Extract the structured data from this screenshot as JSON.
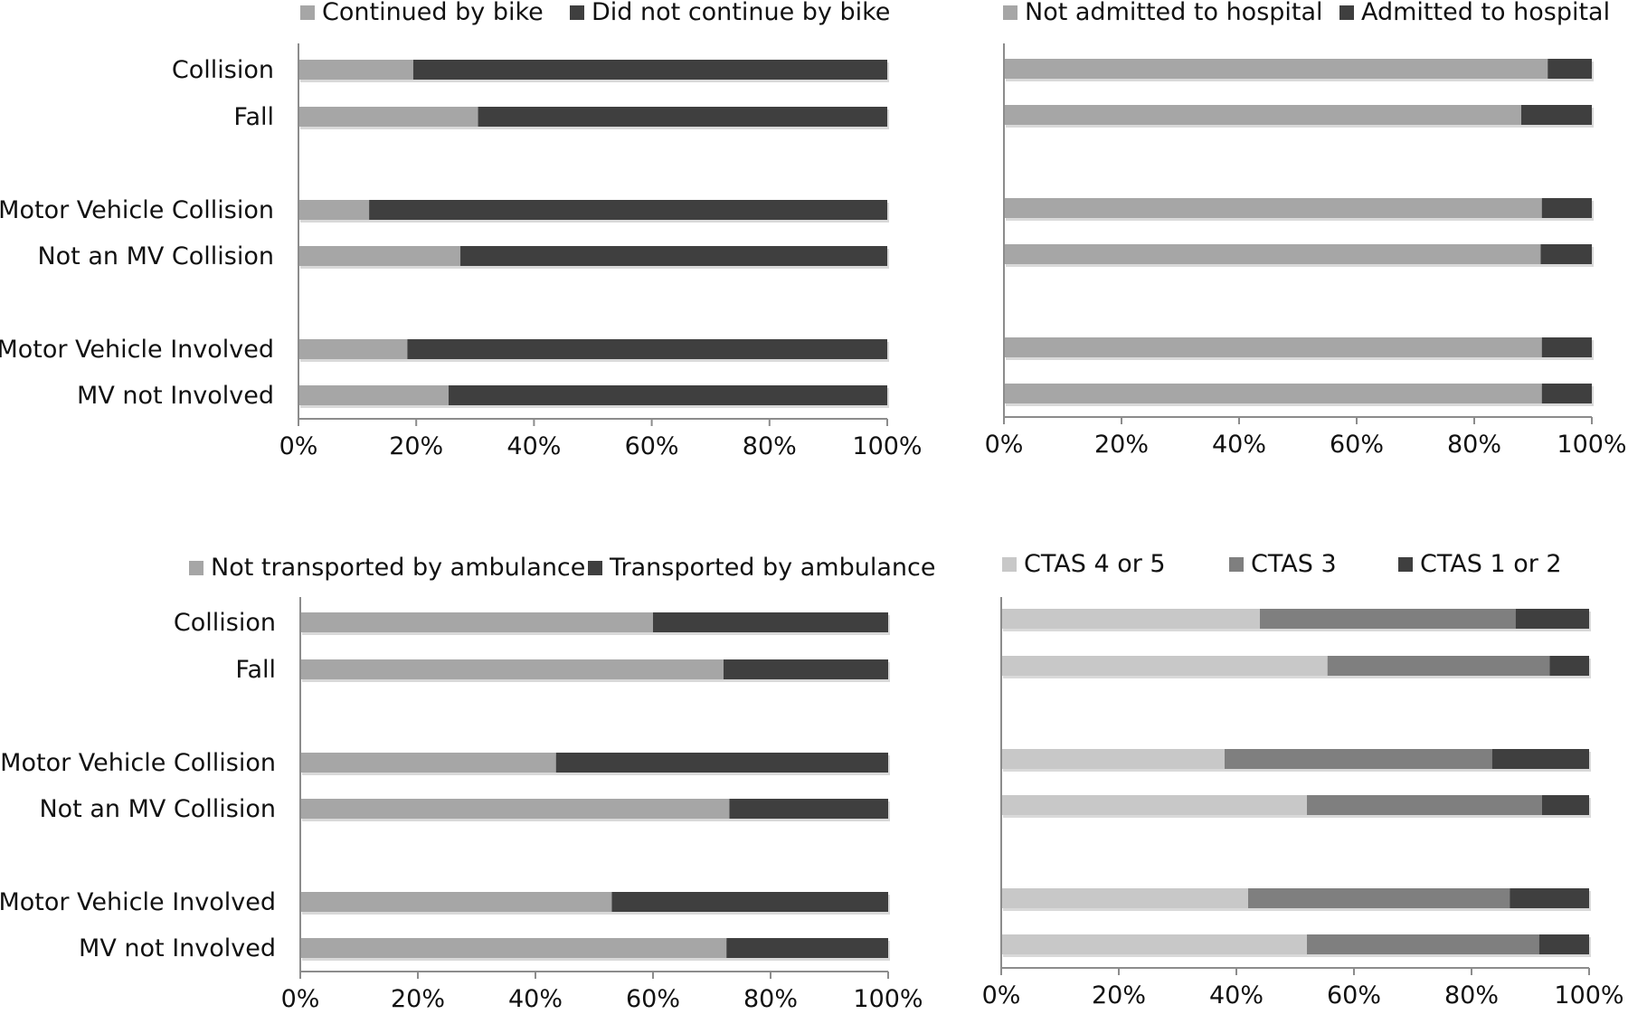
{
  "chart_data": [
    {
      "type": "bar",
      "stacked": true,
      "orientation": "horizontal",
      "percent": true,
      "categories": [
        "Collision",
        "Fall",
        "Motor Vehicle Collision",
        "Not an MV Collision",
        "Motor Vehicle Involved",
        "MV not Involved"
      ],
      "series": [
        {
          "name": "Continued by bike",
          "color": "#a6a6a6",
          "values": [
            19.5,
            30.5,
            12,
            27.5,
            18.5,
            25.5
          ]
        },
        {
          "name": "Did not continue by bike",
          "color": "#3f3f3f",
          "values": [
            80.5,
            69.5,
            88,
            72.5,
            81.5,
            74.5
          ]
        }
      ],
      "xticks": [
        "0%",
        "20%",
        "40%",
        "60%",
        "80%",
        "100%"
      ],
      "xlim": [
        0,
        100
      ],
      "show_category_labels": true,
      "legend": "top"
    },
    {
      "type": "bar",
      "stacked": true,
      "orientation": "horizontal",
      "percent": true,
      "categories": [
        "Collision",
        "Fall",
        "Motor Vehicle Collision",
        "Not an MV Collision",
        "Motor Vehicle Involved",
        "MV not Involved"
      ],
      "series": [
        {
          "name": "Not admitted to hospital",
          "color": "#a6a6a6",
          "values": [
            92.5,
            88,
            91.5,
            91.3,
            91.5,
            91.5
          ]
        },
        {
          "name": "Admitted to hospital",
          "color": "#3f3f3f",
          "values": [
            7.5,
            12,
            8.5,
            8.7,
            8.5,
            8.5
          ]
        }
      ],
      "xticks": [
        "0%",
        "20%",
        "40%",
        "60%",
        "80%",
        "100%"
      ],
      "xlim": [
        0,
        100
      ],
      "show_category_labels": false,
      "legend": "top"
    },
    {
      "type": "bar",
      "stacked": true,
      "orientation": "horizontal",
      "percent": true,
      "categories": [
        "Collision",
        "Fall",
        "Motor Vehicle Collision",
        "Not an MV Collision",
        "Motor Vehicle Involved",
        "MV not Involved"
      ],
      "series": [
        {
          "name": "Not transported by ambulance",
          "color": "#a6a6a6",
          "values": [
            60,
            72,
            43.5,
            73,
            53,
            72.5
          ]
        },
        {
          "name": "Transported by ambulance",
          "color": "#3f3f3f",
          "values": [
            40,
            28,
            56.5,
            27,
            47,
            27.5
          ]
        }
      ],
      "xticks": [
        "0%",
        "20%",
        "40%",
        "60%",
        "80%",
        "100%"
      ],
      "xlim": [
        0,
        100
      ],
      "show_category_labels": true,
      "legend": "top"
    },
    {
      "type": "bar",
      "stacked": true,
      "orientation": "horizontal",
      "percent": true,
      "categories": [
        "Collision",
        "Fall",
        "Motor Vehicle Collision",
        "Not an MV Collision",
        "Motor Vehicle Involved",
        "MV not Involved"
      ],
      "series": [
        {
          "name": "CTAS 4 or 5",
          "color": "#c8c8c8",
          "values": [
            44,
            55.5,
            38,
            52,
            42,
            52
          ]
        },
        {
          "name": "CTAS 3",
          "color": "#7f7f7f",
          "values": [
            43.5,
            37.8,
            45.5,
            40,
            44.5,
            39.5
          ]
        },
        {
          "name": "CTAS 1 or 2",
          "color": "#3f3f3f",
          "values": [
            12.5,
            6.7,
            16.5,
            8,
            13.5,
            8.5
          ]
        }
      ],
      "xticks": [
        "0%",
        "20%",
        "40%",
        "60%",
        "80%",
        "100%"
      ],
      "xlim": [
        0,
        100
      ],
      "show_category_labels": false,
      "legend": "top"
    }
  ]
}
